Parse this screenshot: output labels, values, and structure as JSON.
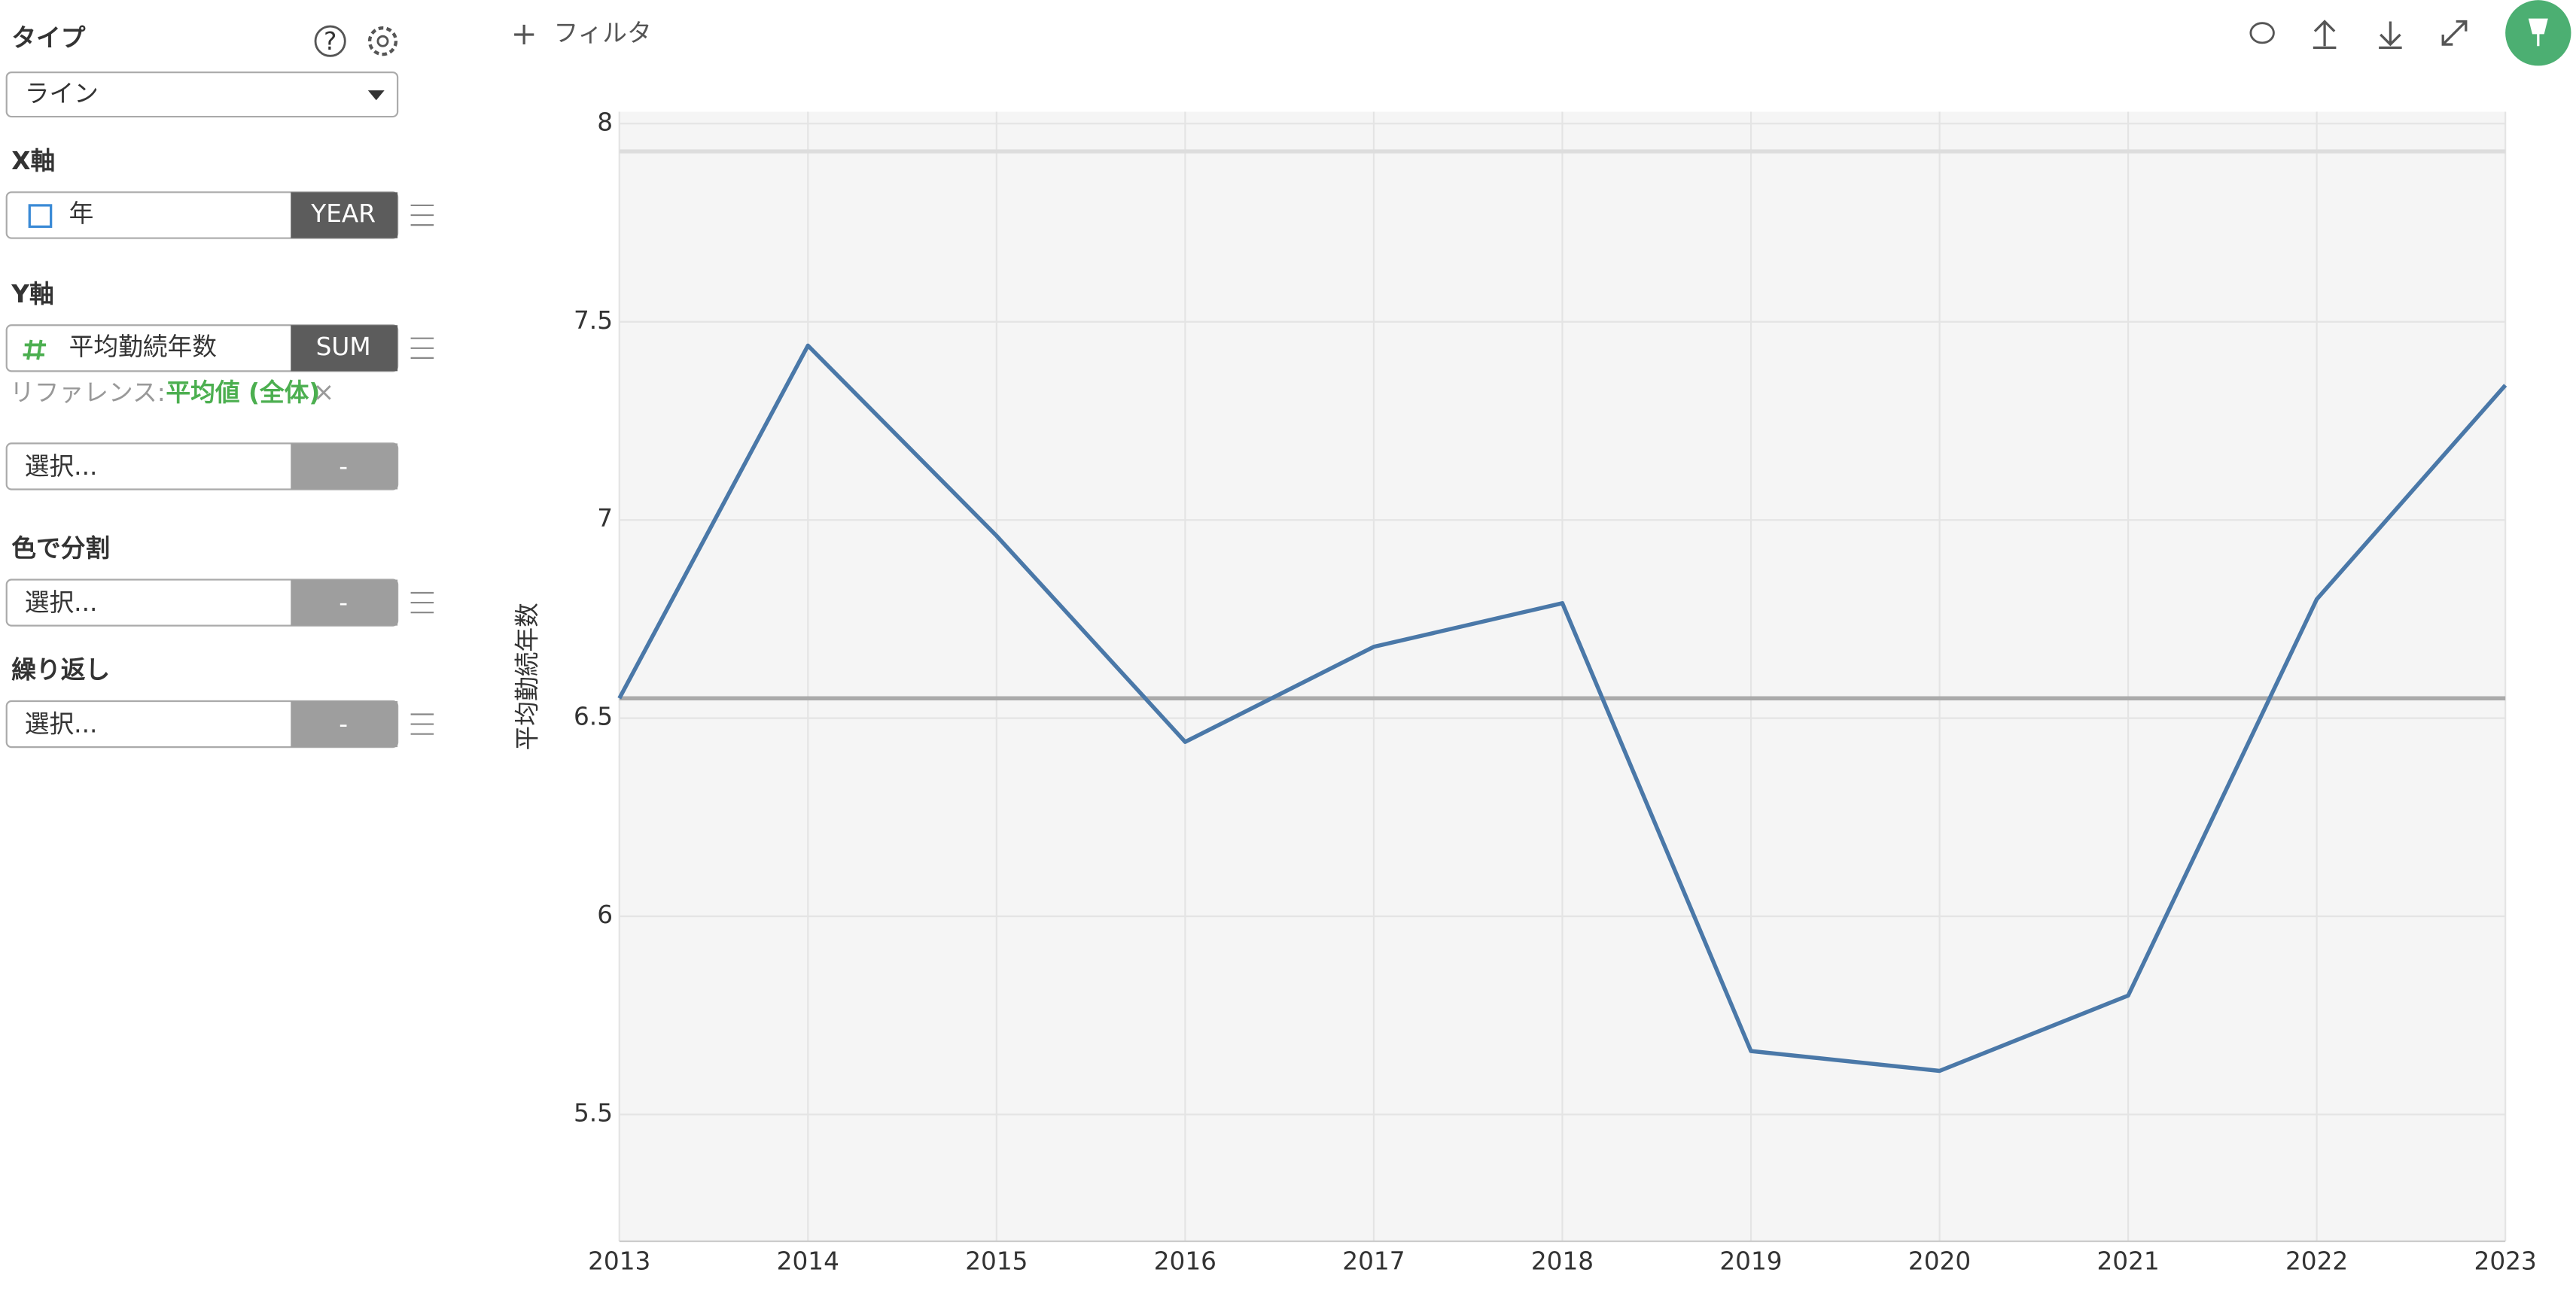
{
  "sidebar": {
    "type_label": "タイプ",
    "type_value": "ライン",
    "x_axis_label": "X軸",
    "x_field": "年",
    "x_agg": "YEAR",
    "y_axis_label": "Y軸",
    "y_field": "平均勤続年数",
    "y_agg": "SUM",
    "reference_prefix": "リファレンス:",
    "reference_value": "平均値 (全体)",
    "extra_field": "選択...",
    "extra_agg": "-",
    "color_label": "色で分割",
    "color_field": "選択...",
    "color_agg": "-",
    "repeat_label": "繰り返し",
    "repeat_field": "選択...",
    "repeat_agg": "-"
  },
  "toolbar": {
    "filter": "フィルタ"
  },
  "chart_data": {
    "type": "line",
    "y_label": "平均勤続年数",
    "x": [
      2013,
      2014,
      2015,
      2016,
      2017,
      2018,
      2019,
      2020,
      2021,
      2022,
      2023
    ],
    "series": [
      {
        "name": "平均勤続年数",
        "color": "#4a78a8",
        "values": [
          6.55,
          7.44,
          6.96,
          6.44,
          6.68,
          6.79,
          5.66,
          5.61,
          5.8,
          6.8,
          7.34
        ]
      }
    ],
    "xlim": [
      2013,
      2023
    ],
    "xticks": [
      2013,
      2014,
      2015,
      2016,
      2017,
      2018,
      2019,
      2020,
      2021,
      2022,
      2023
    ],
    "ylim": [
      5.18,
      8.03
    ],
    "yticks": [
      5.5,
      6,
      6.5,
      7,
      7.5,
      8
    ],
    "grid": true,
    "reference_lines": [
      {
        "value": 7.93,
        "color": "#dddddd"
      },
      {
        "value": 6.55,
        "color": "#aaaaaa"
      }
    ]
  }
}
